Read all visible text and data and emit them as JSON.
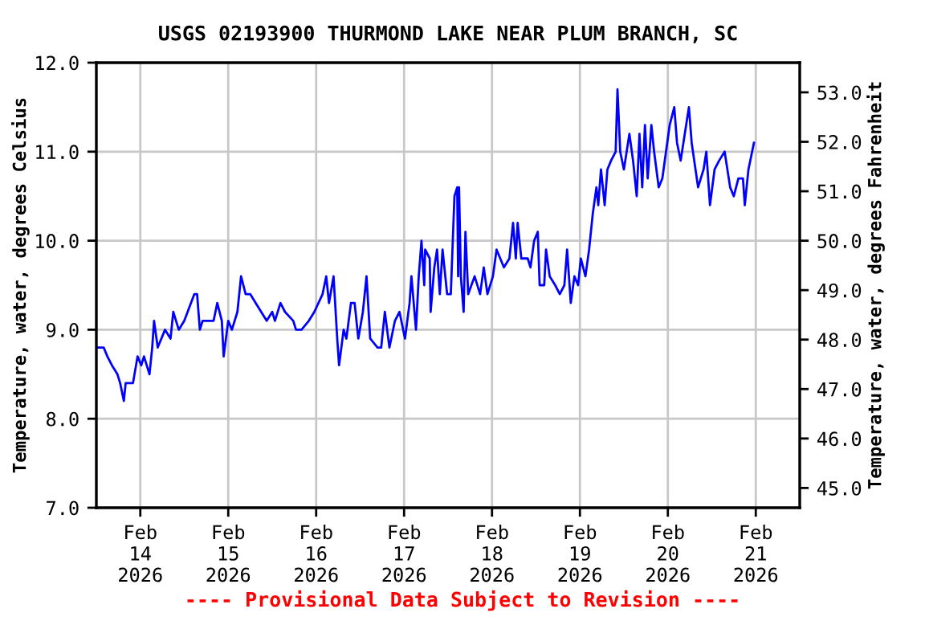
{
  "chart_data": {
    "type": "line",
    "title": "USGS 02193900 THURMOND LAKE NEAR PLUM BRANCH, SC",
    "ylabel": "Temperature, water, degrees Celsius",
    "y2label": "Temperature, water, degrees Fahrenheit",
    "annotations": [
      "---- Provisional Data Subject to Revision ----"
    ],
    "xlim": [
      "2026-02-13T12:00",
      "2026-02-21T12:00"
    ],
    "xticks": [
      {
        "value": "2026-02-14",
        "label": "Feb\n14\n2026"
      },
      {
        "value": "2026-02-15",
        "label": "Feb\n15\n2026"
      },
      {
        "value": "2026-02-16",
        "label": "Feb\n16\n2026"
      },
      {
        "value": "2026-02-17",
        "label": "Feb\n17\n2026"
      },
      {
        "value": "2026-02-18",
        "label": "Feb\n18\n2026"
      },
      {
        "value": "2026-02-19",
        "label": "Feb\n19\n2026"
      },
      {
        "value": "2026-02-20",
        "label": "Feb\n20\n2026"
      },
      {
        "value": "2026-02-21",
        "label": "Feb\n21\n2026"
      }
    ],
    "ylim": [
      7,
      12
    ],
    "yticks": [
      {
        "value": 7,
        "label": "7.0"
      },
      {
        "value": 8,
        "label": "8.0"
      },
      {
        "value": 9,
        "label": "9.0"
      },
      {
        "value": 10,
        "label": "10.0"
      },
      {
        "value": 11,
        "label": "11.0"
      },
      {
        "value": 12,
        "label": "12.0"
      }
    ],
    "y2lim": [
      44.6,
      53.6
    ],
    "y2ticks": [
      {
        "value": 45,
        "label": "45.0"
      },
      {
        "value": 46,
        "label": "46.0"
      },
      {
        "value": 47,
        "label": "47.0"
      },
      {
        "value": 48,
        "label": "48.0"
      },
      {
        "value": 49,
        "label": "49.0"
      },
      {
        "value": 50,
        "label": "50.0"
      },
      {
        "value": 51,
        "label": "51.0"
      },
      {
        "value": 52,
        "label": "52.0"
      },
      {
        "value": 53,
        "label": "53.0"
      }
    ],
    "grid": true,
    "marker": "none",
    "line_style": "solid",
    "x": [
      "2026-02-13T12:00",
      "2026-02-13T14:00",
      "2026-02-13T15:00",
      "2026-02-13T16:15",
      "2026-02-13T17:45",
      "2026-02-13T18:30",
      "2026-02-13T19:30",
      "2026-02-13T20:00",
      "2026-02-13T22:00",
      "2026-02-13T23:15",
      "2026-02-14T00:15",
      "2026-02-14T01:00",
      "2026-02-14T02:30",
      "2026-02-14T03:15",
      "2026-02-14T03:45",
      "2026-02-14T04:45",
      "2026-02-14T06:45",
      "2026-02-14T08:15",
      "2026-02-14T09:00",
      "2026-02-14T09:45",
      "2026-02-14T10:30",
      "2026-02-14T12:00",
      "2026-02-14T14:45",
      "2026-02-14T15:30",
      "2026-02-14T16:15",
      "2026-02-14T17:00",
      "2026-02-14T20:00",
      "2026-02-14T21:00",
      "2026-02-14T22:15",
      "2026-02-14T22:45",
      "2026-02-15T00:00",
      "2026-02-15T01:00",
      "2026-02-15T02:30",
      "2026-02-15T03:30",
      "2026-02-15T04:45",
      "2026-02-15T06:00",
      "2026-02-15T07:30",
      "2026-02-15T09:00",
      "2026-02-15T10:30",
      "2026-02-15T12:00",
      "2026-02-15T12:45",
      "2026-02-15T14:15",
      "2026-02-15T15:30",
      "2026-02-15T17:45",
      "2026-02-15T18:30",
      "2026-02-15T20:00",
      "2026-02-15T22:00",
      "2026-02-15T23:30",
      "2026-02-16T01:45",
      "2026-02-16T02:45",
      "2026-02-16T03:30",
      "2026-02-16T04:45",
      "2026-02-16T05:45",
      "2026-02-16T06:15",
      "2026-02-16T07:30",
      "2026-02-16T08:15",
      "2026-02-16T09:30",
      "2026-02-16T10:30",
      "2026-02-16T11:30",
      "2026-02-16T12:45",
      "2026-02-16T13:45",
      "2026-02-16T14:45",
      "2026-02-16T16:45",
      "2026-02-16T17:45",
      "2026-02-16T18:45",
      "2026-02-16T20:00",
      "2026-02-16T21:30",
      "2026-02-16T22:45",
      "2026-02-17T00:15",
      "2026-02-17T01:30",
      "2026-02-17T02:00",
      "2026-02-17T03:15",
      "2026-02-17T04:00",
      "2026-02-17T04:45",
      "2026-02-17T05:30",
      "2026-02-17T05:45",
      "2026-02-17T07:00",
      "2026-02-17T07:15",
      "2026-02-17T08:15",
      "2026-02-17T09:00",
      "2026-02-17T09:45",
      "2026-02-17T10:30",
      "2026-02-17T11:45",
      "2026-02-17T12:45",
      "2026-02-17T13:45",
      "2026-02-17T14:30",
      "2026-02-17T14:45",
      "2026-02-17T15:00",
      "2026-02-17T15:30",
      "2026-02-17T16:15",
      "2026-02-17T16:45",
      "2026-02-17T17:30",
      "2026-02-17T19:15",
      "2026-02-17T20:45",
      "2026-02-17T21:45",
      "2026-02-17T22:45",
      "2026-02-18T00:15",
      "2026-02-18T01:15",
      "2026-02-18T02:15",
      "2026-02-18T03:15",
      "2026-02-18T04:45",
      "2026-02-18T05:45",
      "2026-02-18T06:30",
      "2026-02-18T07:00",
      "2026-02-18T08:00",
      "2026-02-18T09:45",
      "2026-02-18T10:30",
      "2026-02-18T11:30",
      "2026-02-18T12:30",
      "2026-02-18T13:00",
      "2026-02-18T14:15",
      "2026-02-18T14:45",
      "2026-02-18T15:45",
      "2026-02-18T17:15",
      "2026-02-18T18:30",
      "2026-02-18T19:45",
      "2026-02-18T20:30",
      "2026-02-18T21:30",
      "2026-02-18T22:30",
      "2026-02-18T23:30",
      "2026-02-19T00:15",
      "2026-02-19T01:30",
      "2026-02-19T02:30",
      "2026-02-19T03:30",
      "2026-02-19T04:30",
      "2026-02-19T05:00",
      "2026-02-19T05:45",
      "2026-02-19T06:45",
      "2026-02-19T07:30",
      "2026-02-19T08:30",
      "2026-02-19T09:45",
      "2026-02-19T10:15",
      "2026-02-19T11:00",
      "2026-02-19T12:00",
      "2026-02-19T13:30",
      "2026-02-19T14:30",
      "2026-02-19T15:30",
      "2026-02-19T16:15",
      "2026-02-19T17:00",
      "2026-02-19T17:45",
      "2026-02-19T18:30",
      "2026-02-19T19:30",
      "2026-02-19T20:15",
      "2026-02-19T21:30",
      "2026-02-19T22:30",
      "2026-02-19T23:30",
      "2026-02-20T00:30",
      "2026-02-20T01:45",
      "2026-02-20T02:30",
      "2026-02-20T03:30",
      "2026-02-20T05:00",
      "2026-02-20T05:45",
      "2026-02-20T06:30",
      "2026-02-20T08:15",
      "2026-02-20T09:45",
      "2026-02-20T10:30",
      "2026-02-20T11:30",
      "2026-02-20T12:45",
      "2026-02-20T14:00",
      "2026-02-20T15:30",
      "2026-02-20T17:00",
      "2026-02-20T18:00",
      "2026-02-20T19:15",
      "2026-02-20T20:30",
      "2026-02-20T21:00",
      "2026-02-20T22:00",
      "2026-02-20T23:30"
    ],
    "series": [
      {
        "color": "#0000ff",
        "values": [
          8.8,
          8.8,
          8.7,
          8.6,
          8.5,
          8.4,
          8.2,
          8.4,
          8.4,
          8.7,
          8.6,
          8.7,
          8.5,
          8.8,
          9.1,
          8.8,
          9.0,
          8.9,
          9.2,
          9.1,
          9.0,
          9.1,
          9.4,
          9.4,
          9.0,
          9.1,
          9.1,
          9.3,
          9.1,
          8.7,
          9.1,
          9.0,
          9.2,
          9.6,
          9.4,
          9.4,
          9.3,
          9.2,
          9.1,
          9.2,
          9.1,
          9.3,
          9.2,
          9.1,
          9.0,
          9.0,
          9.1,
          9.2,
          9.4,
          9.6,
          9.3,
          9.6,
          8.9,
          8.6,
          9.0,
          8.9,
          9.3,
          9.3,
          8.9,
          9.2,
          9.6,
          8.9,
          8.8,
          8.8,
          9.2,
          8.8,
          9.1,
          9.2,
          8.9,
          9.3,
          9.6,
          9.0,
          9.6,
          10.0,
          9.5,
          9.9,
          9.8,
          9.2,
          9.7,
          9.9,
          9.4,
          9.9,
          9.4,
          9.4,
          10.5,
          10.6,
          9.6,
          10.6,
          9.6,
          9.2,
          10.1,
          9.4,
          9.6,
          9.4,
          9.7,
          9.4,
          9.6,
          9.9,
          9.8,
          9.7,
          9.8,
          10.2,
          9.8,
          10.2,
          9.8,
          9.8,
          9.7,
          10.0,
          10.1,
          9.5,
          9.5,
          9.9,
          9.6,
          9.5,
          9.4,
          9.5,
          9.9,
          9.3,
          9.6,
          9.5,
          9.8,
          9.6,
          9.9,
          10.3,
          10.6,
          10.4,
          10.8,
          10.4,
          10.8,
          10.9,
          11.0,
          11.7,
          11.0,
          10.8,
          11.2,
          10.9,
          10.5,
          11.2,
          10.6,
          11.3,
          10.7,
          11.3,
          11.0,
          10.6,
          10.7,
          11.0,
          11.3,
          11.5,
          11.1,
          10.9,
          11.3,
          11.5,
          11.1,
          10.6,
          10.8,
          11.0,
          10.4,
          10.8,
          10.9,
          11.0,
          10.6,
          10.5,
          10.7,
          10.7,
          10.4,
          10.8,
          11.1
        ]
      }
    ]
  }
}
